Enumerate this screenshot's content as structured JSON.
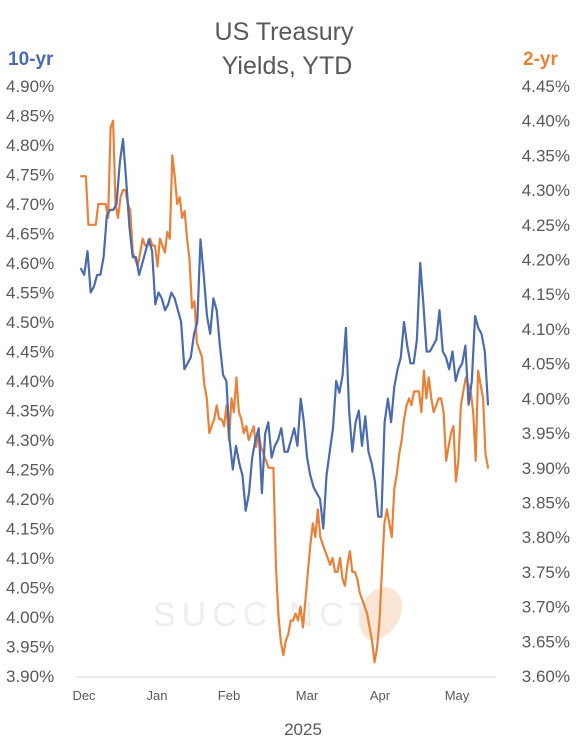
{
  "chart_data": {
    "type": "line",
    "title": [
      "US Treasury",
      "Yields, YTD"
    ],
    "xlabel": "2025",
    "x_ticks": [
      "Dec",
      "Jan",
      "Feb",
      "Mar",
      "Apr",
      "May"
    ],
    "left_axis": {
      "label": "10-yr",
      "ylim": [
        3.9,
        4.9
      ],
      "ticks": [
        "4.90%",
        "4.85%",
        "4.80%",
        "4.75%",
        "4.70%",
        "4.65%",
        "4.60%",
        "4.55%",
        "4.50%",
        "4.45%",
        "4.40%",
        "4.35%",
        "4.30%",
        "4.25%",
        "4.20%",
        "4.15%",
        "4.10%",
        "4.05%",
        "4.00%",
        "3.95%",
        "3.90%"
      ]
    },
    "right_axis": {
      "label": "2-yr",
      "ylim": [
        3.6,
        4.45
      ],
      "ticks": [
        "4.45%",
        "4.40%",
        "4.35%",
        "4.30%",
        "4.25%",
        "4.20%",
        "4.15%",
        "4.10%",
        "4.05%",
        "4.00%",
        "3.95%",
        "3.90%",
        "3.85%",
        "3.80%",
        "3.75%",
        "3.70%",
        "3.65%",
        "3.60%"
      ]
    },
    "series": [
      {
        "name": "10-yr",
        "axis": "left",
        "color": "#4a6bb0",
        "values": [
          4.59,
          4.58,
          4.62,
          4.55,
          4.56,
          4.58,
          4.58,
          4.61,
          4.68,
          4.69,
          4.69,
          4.7,
          4.77,
          4.81,
          4.74,
          4.66,
          4.61,
          4.61,
          4.58,
          4.6,
          4.62,
          4.64,
          4.62,
          4.53,
          4.55,
          4.54,
          4.52,
          4.53,
          4.55,
          4.54,
          4.52,
          4.5,
          4.42,
          4.43,
          4.44,
          4.48,
          4.5,
          4.64,
          4.58,
          4.51,
          4.48,
          4.54,
          4.52,
          4.46,
          4.41,
          4.4,
          4.3,
          4.25,
          4.29,
          4.26,
          4.24,
          4.18,
          4.21,
          4.27,
          4.3,
          4.32,
          4.21,
          4.31,
          4.33,
          4.27,
          4.29,
          4.3,
          4.32,
          4.28,
          4.28,
          4.3,
          4.32,
          4.29,
          4.37,
          4.33,
          4.27,
          4.24,
          4.22,
          4.21,
          4.2,
          4.15,
          4.24,
          4.28,
          4.32,
          4.4,
          4.38,
          4.41,
          4.49,
          4.35,
          4.28,
          4.33,
          4.35,
          4.29,
          4.34,
          4.28,
          4.26,
          4.23,
          4.17,
          4.17,
          4.33,
          4.37,
          4.33,
          4.39,
          4.42,
          4.44,
          4.5,
          4.46,
          4.43,
          4.43,
          4.47,
          4.6,
          4.53,
          4.45,
          4.45,
          4.46,
          4.47,
          4.52,
          4.45,
          4.44,
          4.42,
          4.45,
          4.4,
          4.42,
          4.43,
          4.46,
          4.36,
          4.4,
          4.51,
          4.49,
          4.48,
          4.45,
          4.36
        ]
      },
      {
        "name": "2-yr",
        "axis": "right",
        "color": "#e8823a",
        "values": [
          4.32,
          4.32,
          4.32,
          4.25,
          4.25,
          4.25,
          4.25,
          4.28,
          4.28,
          4.28,
          4.28,
          4.26,
          4.39,
          4.4,
          4.28,
          4.26,
          4.29,
          4.3,
          4.3,
          4.28,
          4.27,
          4.21,
          4.2,
          4.19,
          4.21,
          4.23,
          4.22,
          4.22,
          4.23,
          4.22,
          4.22,
          4.19,
          4.23,
          4.22,
          4.21,
          4.24,
          4.23,
          4.35,
          4.32,
          4.28,
          4.29,
          4.26,
          4.27,
          4.23,
          4.2,
          4.13,
          4.14,
          4.08,
          4.07,
          4.06,
          4.02,
          4.0,
          3.95,
          3.96,
          3.97,
          3.99,
          3.97,
          3.97,
          3.96,
          3.99,
          3.94,
          4.0,
          3.98,
          4.03,
          3.98,
          3.97,
          3.95,
          3.96,
          3.94,
          3.95,
          3.96,
          3.93,
          3.95,
          3.93,
          3.92,
          3.91,
          3.9,
          3.9,
          3.9,
          3.76,
          3.69,
          3.65,
          3.63,
          3.65,
          3.66,
          3.68,
          3.68,
          3.69,
          3.68,
          3.7,
          3.67,
          3.71,
          3.75,
          3.79,
          3.82,
          3.8,
          3.84,
          3.8,
          3.79,
          3.78,
          3.77,
          3.76,
          3.77,
          3.75,
          3.75,
          3.77,
          3.74,
          3.73,
          3.76,
          3.78,
          3.75,
          3.75,
          3.74,
          3.72,
          3.71,
          3.7,
          3.69,
          3.67,
          3.65,
          3.62,
          3.64,
          3.68,
          3.75,
          3.82,
          3.84,
          3.82,
          3.8,
          3.87,
          3.89,
          3.92,
          3.94,
          3.97,
          3.99,
          4.0,
          3.99,
          4.01,
          4.01,
          4.01,
          3.98,
          4.04,
          4.0,
          4.03,
          4.0,
          3.98,
          3.99,
          4.0,
          4.0,
          3.98,
          3.91,
          3.93,
          3.95,
          3.96,
          3.88,
          3.91,
          3.99,
          4.01,
          4.03,
          4.02,
          4.01,
          3.98,
          3.91,
          4.04,
          4.02,
          4.0,
          3.92,
          3.9
        ]
      }
    ],
    "watermark": "SUCCINCT"
  }
}
